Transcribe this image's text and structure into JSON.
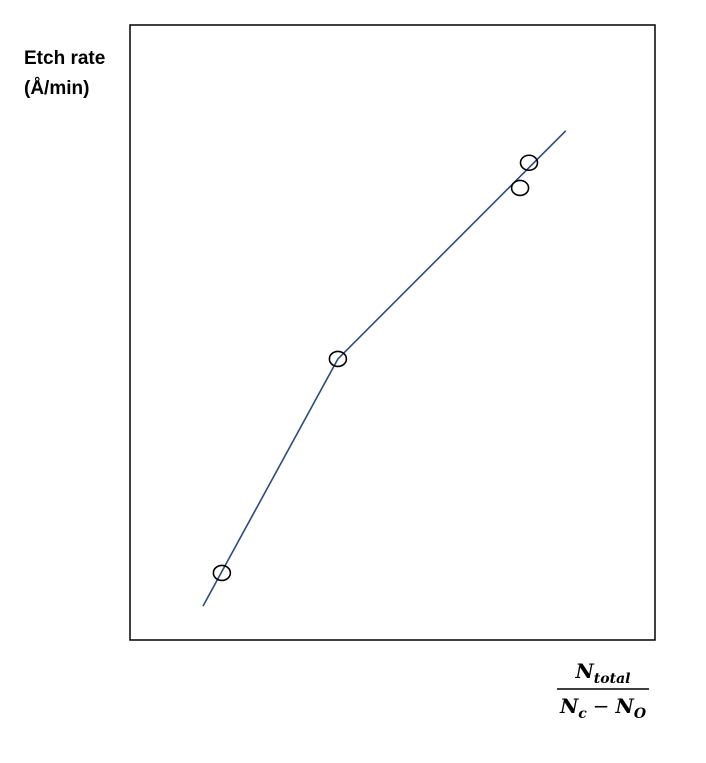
{
  "chart_data": {
    "type": "scatter",
    "ylabel": [
      "Etch rate",
      "(Å/min)"
    ],
    "xlabel": {
      "numerator": [
        "N",
        "total"
      ],
      "denominator": [
        "N",
        "c",
        "−",
        "N",
        "O"
      ]
    },
    "xlim": [
      0,
      100
    ],
    "ylim": [
      0,
      100
    ],
    "series": [
      {
        "type": "scatter",
        "color": "#000000",
        "x": [
          17.5,
          39.6,
          74.3,
          76.0
        ],
        "values": [
          10.9,
          45.7,
          73.5,
          77.6
        ]
      },
      {
        "type": "line",
        "color": "#2e4a7f",
        "x": [
          13.9,
          39.6,
          83.0
        ],
        "values": [
          5.5,
          45.7,
          82.8
        ]
      }
    ]
  }
}
